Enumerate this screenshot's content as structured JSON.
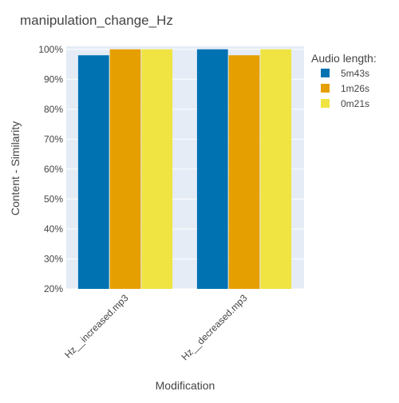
{
  "chart_data": {
    "type": "bar",
    "title": "manipulation_change_Hz",
    "xlabel": "Modification",
    "ylabel": "Content - Similarity",
    "categories": [
      "Hz__increased.mp3",
      "Hz__decreased.mp3"
    ],
    "series": [
      {
        "name": "5m43s",
        "values": [
          98,
          100
        ],
        "color": "#0072B2"
      },
      {
        "name": "1m26s",
        "values": [
          100,
          98
        ],
        "color": "#E69F00"
      },
      {
        "name": "0m21s",
        "values": [
          100,
          100
        ],
        "color": "#F0E442"
      }
    ],
    "ylim": [
      20,
      101
    ],
    "yticks": [
      20,
      30,
      40,
      50,
      60,
      70,
      80,
      90,
      100
    ],
    "ytick_suffix": "%",
    "legend": {
      "title": "Audio length:",
      "placement": "top-right"
    },
    "grid": true,
    "plot_background": "#E5ECF6"
  }
}
